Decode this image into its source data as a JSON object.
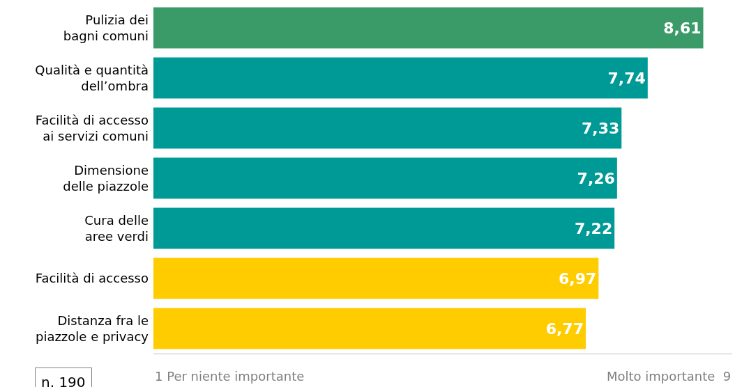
{
  "chart_data": {
    "type": "bar",
    "orientation": "horizontal",
    "categories": [
      "Pulizia dei\nbagni comuni",
      "Qualità e quantità\ndell’ombra",
      "Facilità di accesso\nai servizi comuni",
      "Dimensione\ndelle piazzole",
      "Cura delle\naree verdi",
      "Facilità di accesso",
      "Distanza fra le\npiazzole e privacy"
    ],
    "values": [
      8.61,
      7.74,
      7.33,
      7.26,
      7.22,
      6.97,
      6.77
    ],
    "colors": [
      "#3a9b68",
      "#009a96",
      "#009a96",
      "#009a96",
      "#009a96",
      "#ffcc00",
      "#ffcc00"
    ],
    "value_labels": [
      "8,61",
      "7,74",
      "7,33",
      "7,26",
      "7,22",
      "6,97",
      "6,77"
    ],
    "legend": false,
    "annotations": [
      "1 Per niente importante",
      "Molto importante  9",
      "n. 190"
    ]
  }
}
